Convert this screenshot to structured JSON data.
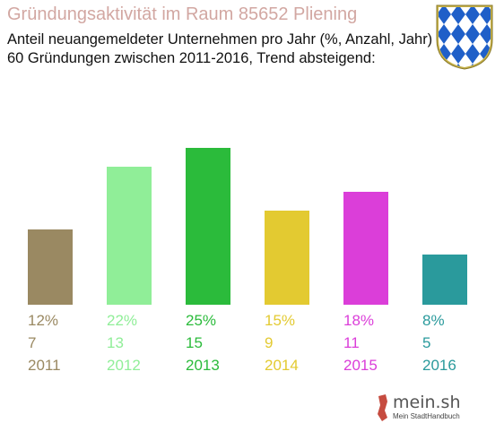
{
  "header": {
    "title": "Gründungsaktivität im Raum 85652 Pliening",
    "subtitle1": "Anteil neuangemeldeter Unternehmen pro Jahr (%, Anzahl, Jahr)",
    "subtitle2": "60 Gründungen zwischen 2011-2016, Trend absteigend:"
  },
  "crest": {
    "icon": "bavarian-lozenge-crest-icon",
    "colors": [
      "#1f5fc8",
      "#ffffff",
      "#b8a23a"
    ]
  },
  "branding": {
    "name": "mein.sh",
    "tagline": "Mein StadtHandbuch"
  },
  "chart_data": {
    "type": "bar",
    "title": "",
    "xlabel": "",
    "ylabel": "",
    "grid": false,
    "categories": [
      "2011",
      "2012",
      "2013",
      "2014",
      "2015",
      "2016"
    ],
    "series": [
      {
        "values": [
          12,
          22,
          25,
          15,
          18,
          8
        ]
      }
    ],
    "counts": [
      7,
      13,
      15,
      9,
      11,
      5
    ],
    "percent_labels": [
      "12%",
      "22%",
      "25%",
      "15%",
      "18%",
      "8%"
    ],
    "count_labels": [
      "7",
      "13",
      "15",
      "9",
      "11",
      "5"
    ],
    "colors": [
      "#9a8962",
      "#90ee98",
      "#2bbb3b",
      "#e3ca31",
      "#db3ed9",
      "#2a9a9c"
    ],
    "ylim": [
      0,
      25
    ]
  }
}
